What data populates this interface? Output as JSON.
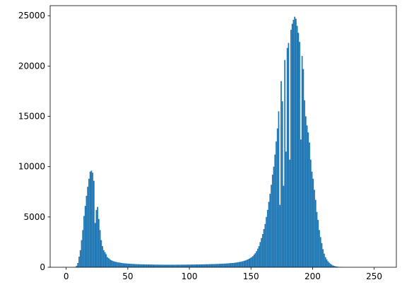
{
  "chart_data": {
    "type": "bar",
    "subtype": "histogram",
    "title": "",
    "xlabel": "",
    "ylabel": "",
    "xlim": [
      -13,
      268
    ],
    "ylim": [
      0,
      26000
    ],
    "grid": false,
    "legend": "none",
    "bar_color": "#1f77b4",
    "x_ticks": [
      0,
      50,
      100,
      150,
      200,
      250
    ],
    "x_tick_labels": [
      "0",
      "50",
      "100",
      "150",
      "200",
      "250"
    ],
    "y_ticks": [
      0,
      5000,
      10000,
      15000,
      20000,
      25000
    ],
    "y_tick_labels": [
      "0",
      "5000",
      "10000",
      "15000",
      "20000",
      "25000"
    ],
    "bin_start": 0,
    "bin_width": 1,
    "values": [
      0,
      0,
      0,
      0,
      0,
      0,
      0,
      40,
      150,
      420,
      1050,
      1700,
      2700,
      3700,
      5100,
      6100,
      7100,
      8000,
      8800,
      9500,
      9600,
      9400,
      8600,
      4400,
      5700,
      6000,
      4800,
      3700,
      2700,
      2100,
      1700,
      1500,
      1300,
      1000,
      900,
      800,
      700,
      650,
      600,
      560,
      530,
      500,
      480,
      460,
      440,
      420,
      400,
      390,
      380,
      370,
      360,
      350,
      340,
      335,
      330,
      320,
      315,
      310,
      305,
      300,
      295,
      290,
      290,
      285,
      280,
      280,
      275,
      275,
      270,
      270,
      265,
      265,
      260,
      260,
      260,
      255,
      255,
      255,
      250,
      250,
      250,
      250,
      250,
      250,
      250,
      250,
      250,
      250,
      250,
      250,
      255,
      255,
      255,
      255,
      260,
      260,
      260,
      260,
      265,
      265,
      265,
      270,
      270,
      270,
      275,
      275,
      280,
      280,
      285,
      285,
      290,
      290,
      295,
      300,
      300,
      305,
      310,
      310,
      315,
      320,
      320,
      325,
      330,
      335,
      340,
      345,
      350,
      360,
      365,
      370,
      380,
      390,
      400,
      410,
      420,
      430,
      440,
      460,
      480,
      500,
      520,
      540,
      570,
      600,
      640,
      680,
      730,
      780,
      850,
      930,
      1000,
      1100,
      1250,
      1400,
      1600,
      1850,
      2100,
      2500,
      2900,
      3300,
      3800,
      4300,
      5000,
      5700,
      6500,
      7300,
      8200,
      9200,
      10000,
      11200,
      12500,
      13800,
      15500,
      6200,
      18500,
      16500,
      8100,
      20600,
      11500,
      21800,
      22300,
      10700,
      23600,
      24200,
      24600,
      24900,
      24700,
      24000,
      23300,
      22400,
      12700,
      21000,
      19700,
      16600,
      15000,
      14100,
      13400,
      12400,
      10700,
      9500,
      8800,
      7700,
      6700,
      5500,
      4700,
      3700,
      3000,
      2400,
      1800,
      1350,
      1000,
      780,
      600,
      460,
      350,
      260,
      190,
      140,
      100,
      70,
      50,
      35,
      25,
      15,
      10,
      5,
      0,
      0,
      0,
      0,
      0,
      0,
      0,
      0,
      0,
      0,
      0,
      0,
      0,
      0,
      0,
      0,
      0,
      0,
      0,
      0,
      0,
      0,
      0,
      0,
      0,
      0,
      0,
      0,
      0,
      0
    ]
  }
}
